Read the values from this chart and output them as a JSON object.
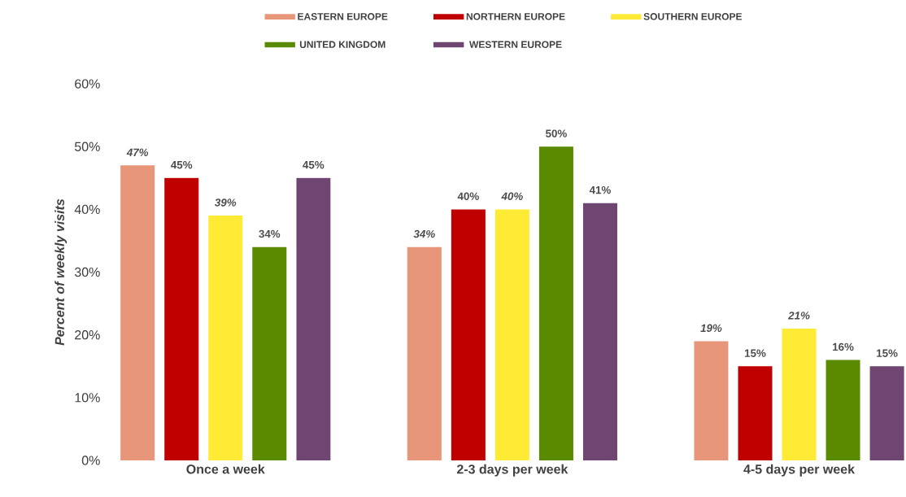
{
  "chart_data": {
    "type": "bar",
    "ylabel": "Percent of weekly visits",
    "categories": [
      "Once a week",
      "2-3 days per week",
      "4-5 days per week"
    ],
    "ylim": [
      0,
      60
    ],
    "yticks": [
      {
        "value": 0,
        "label": "0%"
      },
      {
        "value": 10,
        "label": "10%"
      },
      {
        "value": 20,
        "label": "20%"
      },
      {
        "value": 30,
        "label": "30%"
      },
      {
        "value": 40,
        "label": "40%"
      },
      {
        "value": 50,
        "label": "50%"
      },
      {
        "value": 60,
        "label": "60%"
      }
    ],
    "grid": false,
    "legend": "top",
    "series": [
      {
        "name": "EASTERN  EUROPE",
        "color": "#e8967a",
        "values": [
          47,
          34,
          19
        ],
        "value_labels": [
          "*47%*",
          "*34%*",
          "*19%*"
        ]
      },
      {
        "name": "NORTHERN  EUROPE",
        "color": "#c00000",
        "values": [
          45,
          40,
          15
        ],
        "value_labels": [
          "45%",
          "40%",
          "15%"
        ]
      },
      {
        "name": "SOUTHERN  EUROPE",
        "color": "#ffeb35",
        "values": [
          39,
          40,
          21
        ],
        "value_labels": [
          "*39%*",
          "*40%*",
          "*21%*"
        ]
      },
      {
        "name": "UNITED  KINGDOM",
        "color": "#5a8a00",
        "values": [
          34,
          50,
          16
        ],
        "value_labels": [
          "34%",
          "50%",
          "16%"
        ]
      },
      {
        "name": "WESTERN  EUROPE",
        "color": "#6e4671",
        "values": [
          45,
          41,
          15
        ],
        "value_labels": [
          "45%",
          "41%",
          "15%"
        ]
      }
    ]
  }
}
